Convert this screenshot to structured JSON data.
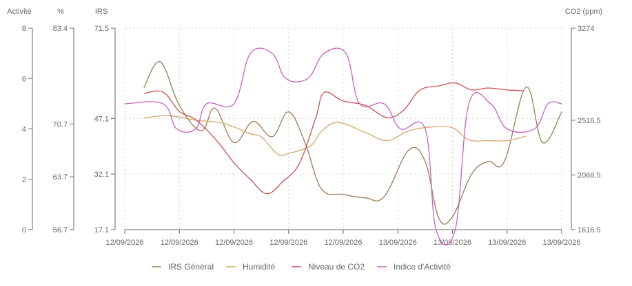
{
  "chart_data": {
    "type": "line",
    "x": [
      "12/09/2026",
      "12/09/2026",
      "12/09/2026",
      "12/09/2026",
      "12/09/2026",
      "13/09/2026",
      "13/09/2026",
      "13/09/2026",
      "13/09/2026"
    ],
    "y_axes": {
      "activite": {
        "title": "Activité",
        "ticks": [
          "0",
          "2",
          "4",
          "6",
          "8"
        ],
        "range": [
          0,
          8
        ]
      },
      "humidite": {
        "title": "%",
        "ticks": [
          "56.7",
          "63.7",
          "70.7",
          "83.4"
        ],
        "range": [
          56.7,
          83.4
        ]
      },
      "irs": {
        "title": "IRS",
        "ticks": [
          "17.1",
          "32.1",
          "47.1",
          "71.5"
        ],
        "range": [
          17.1,
          71.5
        ]
      },
      "co2": {
        "title": "CO2 (ppm)",
        "ticks": [
          "1616.5",
          "2066.5",
          "2516.5",
          "3274"
        ],
        "range": [
          1616.5,
          3274
        ]
      }
    },
    "grid": true,
    "legend_position": "bottom",
    "series": [
      {
        "name": "IRS Général",
        "axis": "irs",
        "color": "#a07850",
        "points": [
          [
            0.35,
            55.4
          ],
          [
            0.65,
            62.4
          ],
          [
            1.0,
            50.6
          ],
          [
            1.4,
            43.8
          ],
          [
            1.65,
            49.9
          ],
          [
            2.0,
            40.6
          ],
          [
            2.35,
            46.3
          ],
          [
            2.7,
            42.2
          ],
          [
            3.0,
            48.9
          ],
          [
            3.3,
            40.6
          ],
          [
            3.6,
            28.1
          ],
          [
            4.0,
            26.6
          ],
          [
            4.4,
            25.7
          ],
          [
            4.75,
            26.0
          ],
          [
            5.2,
            38.6
          ],
          [
            5.5,
            35.5
          ],
          [
            5.75,
            20.2
          ],
          [
            6.0,
            20.6
          ],
          [
            6.35,
            32.1
          ],
          [
            6.65,
            35.5
          ],
          [
            6.95,
            35.5
          ],
          [
            7.35,
            55.6
          ],
          [
            7.65,
            40.6
          ],
          [
            8.0,
            48.9
          ]
        ]
      },
      {
        "name": "Humidité",
        "axis": "humidite",
        "color": "#d4a76a",
        "points": [
          [
            0.35,
            71.5
          ],
          [
            0.8,
            71.8
          ],
          [
            1.3,
            71.2
          ],
          [
            1.8,
            70.8
          ],
          [
            2.3,
            69.4
          ],
          [
            2.5,
            69.0
          ],
          [
            2.8,
            66.7
          ],
          [
            3.0,
            66.8
          ],
          [
            3.4,
            67.8
          ],
          [
            3.6,
            69.7
          ],
          [
            3.9,
            70.9
          ],
          [
            4.4,
            69.6
          ],
          [
            4.8,
            68.5
          ],
          [
            5.2,
            69.8
          ],
          [
            5.6,
            70.3
          ],
          [
            6.0,
            70.2
          ],
          [
            6.3,
            68.6
          ],
          [
            6.65,
            68.5
          ],
          [
            7.0,
            68.5
          ],
          [
            7.35,
            69.1
          ]
        ]
      },
      {
        "name": "Niveau de CO2",
        "axis": "co2",
        "color": "#d05050",
        "points": [
          [
            0.35,
            2737
          ],
          [
            0.7,
            2748
          ],
          [
            1.0,
            2589
          ],
          [
            1.3,
            2520
          ],
          [
            1.7,
            2341
          ],
          [
            2.0,
            2165
          ],
          [
            2.3,
            2030
          ],
          [
            2.6,
            1912
          ],
          [
            2.9,
            2015
          ],
          [
            3.2,
            2163
          ],
          [
            3.5,
            2541
          ],
          [
            3.65,
            2745
          ],
          [
            4.0,
            2675
          ],
          [
            4.4,
            2640
          ],
          [
            4.8,
            2539
          ],
          [
            5.1,
            2597
          ],
          [
            5.4,
            2763
          ],
          [
            5.75,
            2799
          ],
          [
            6.05,
            2823
          ],
          [
            6.35,
            2766
          ],
          [
            6.65,
            2782
          ],
          [
            7.0,
            2766
          ],
          [
            7.3,
            2760
          ]
        ]
      },
      {
        "name": "Indice d'Activité",
        "axis": "activite",
        "color": "#c860c0",
        "points": [
          [
            0.0,
            5
          ],
          [
            0.7,
            5
          ],
          [
            0.95,
            4
          ],
          [
            1.3,
            4
          ],
          [
            1.5,
            5
          ],
          [
            2.0,
            5
          ],
          [
            2.3,
            7
          ],
          [
            2.7,
            7
          ],
          [
            2.95,
            6
          ],
          [
            3.35,
            6
          ],
          [
            3.65,
            7
          ],
          [
            4.05,
            7
          ],
          [
            4.3,
            5
          ],
          [
            4.75,
            5
          ],
          [
            5.05,
            4
          ],
          [
            5.5,
            4
          ],
          [
            5.7,
            0
          ],
          [
            6.05,
            0
          ],
          [
            6.3,
            5
          ],
          [
            6.7,
            5
          ],
          [
            7.0,
            4
          ],
          [
            7.5,
            4
          ],
          [
            7.75,
            5
          ],
          [
            8.0,
            5
          ]
        ]
      }
    ]
  }
}
